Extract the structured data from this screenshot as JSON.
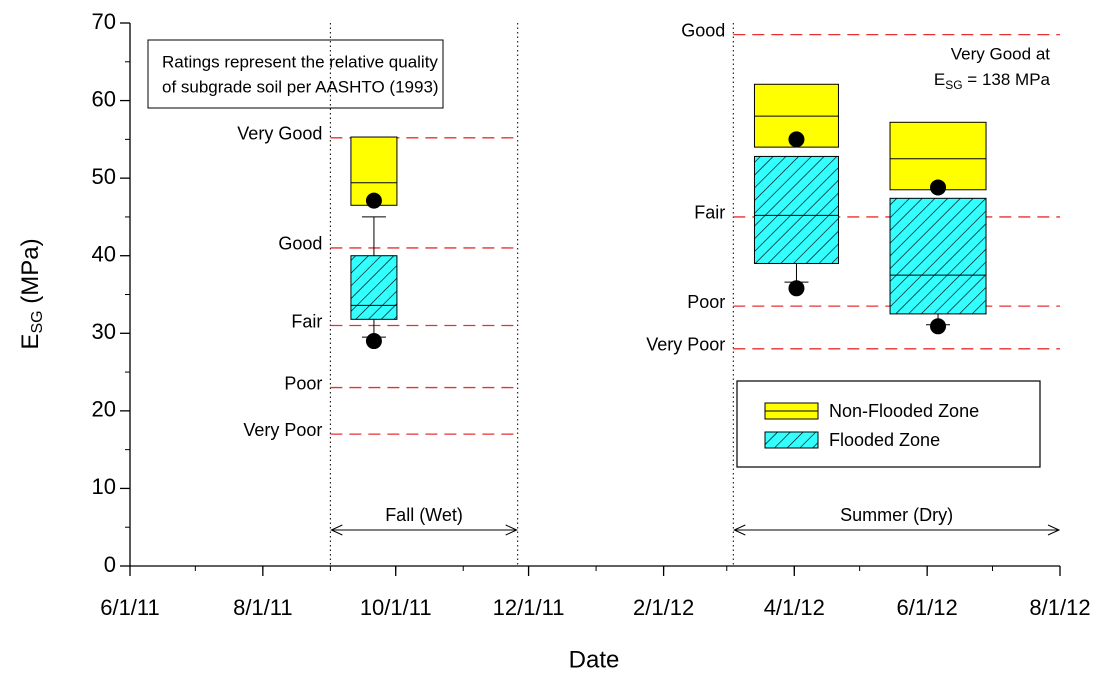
{
  "chart_data": {
    "type": "box",
    "xlabel": "Date",
    "ylabel": {
      "main": "E",
      "sub": "SG",
      "rest": " (MPa)"
    },
    "xlim": [
      "6/1/11",
      "8/1/12"
    ],
    "xticks": [
      "6/1/11",
      "8/1/11",
      "10/1/11",
      "12/1/11",
      "2/1/12",
      "4/1/12",
      "6/1/12",
      "8/1/12"
    ],
    "ylim": [
      0,
      70
    ],
    "yticks": [
      0,
      10,
      20,
      30,
      40,
      50,
      60,
      70
    ],
    "x": [
      "9/21/11",
      "4/2/12",
      "6/6/12"
    ],
    "series": [
      {
        "name": "Non-Flooded Zone",
        "color": "#ffff00",
        "hatch": false,
        "q1": [
          46.5,
          54.0,
          48.5
        ],
        "median": [
          49.4,
          58.0,
          52.5
        ],
        "q3": [
          55.3,
          62.1,
          57.2
        ],
        "whisker_low": [
          null,
          null,
          null
        ],
        "whisker_high": [
          null,
          null,
          null
        ],
        "outliers": [
          47.1,
          55.0,
          48.8
        ]
      },
      {
        "name": "Flooded Zone",
        "color": "#33ffff",
        "hatch": true,
        "q1": [
          31.8,
          39.0,
          32.5
        ],
        "median": [
          33.6,
          45.2,
          37.5
        ],
        "q3": [
          40.0,
          52.8,
          47.4
        ],
        "whisker_low": [
          29.5,
          36.6,
          31.1
        ],
        "whisker_high": [
          45.0,
          null,
          null
        ],
        "outliers": [
          29.0,
          35.8,
          30.9
        ]
      }
    ],
    "periods": [
      {
        "label": "Fall (Wet)",
        "start": "9/1/11",
        "end": "11/26/11",
        "ratings": [
          {
            "label": "Very Good",
            "value": 55.2
          },
          {
            "label": "Good",
            "value": 41
          },
          {
            "label": "Fair",
            "value": 31
          },
          {
            "label": "Poor",
            "value": 23
          },
          {
            "label": "Very Poor",
            "value": 17
          }
        ]
      },
      {
        "label": "Summer (Dry)",
        "start": "3/4/12",
        "end": "8/1/12",
        "ratings": [
          {
            "label": "Good",
            "value": 68.5
          },
          {
            "label": "Fair",
            "value": 45
          },
          {
            "label": "Poor",
            "value": 33.5
          },
          {
            "label": "Very Poor",
            "value": 28
          }
        ]
      }
    ],
    "note": [
      "Ratings represent the relative quality",
      "of subgrade soil per AASHTO (1993)"
    ],
    "note2": {
      "line1": "Very Good at",
      "line2": {
        "main": "E",
        "sub": "SG",
        "rest": " = 138 MPa"
      }
    },
    "legend": "lower right"
  }
}
